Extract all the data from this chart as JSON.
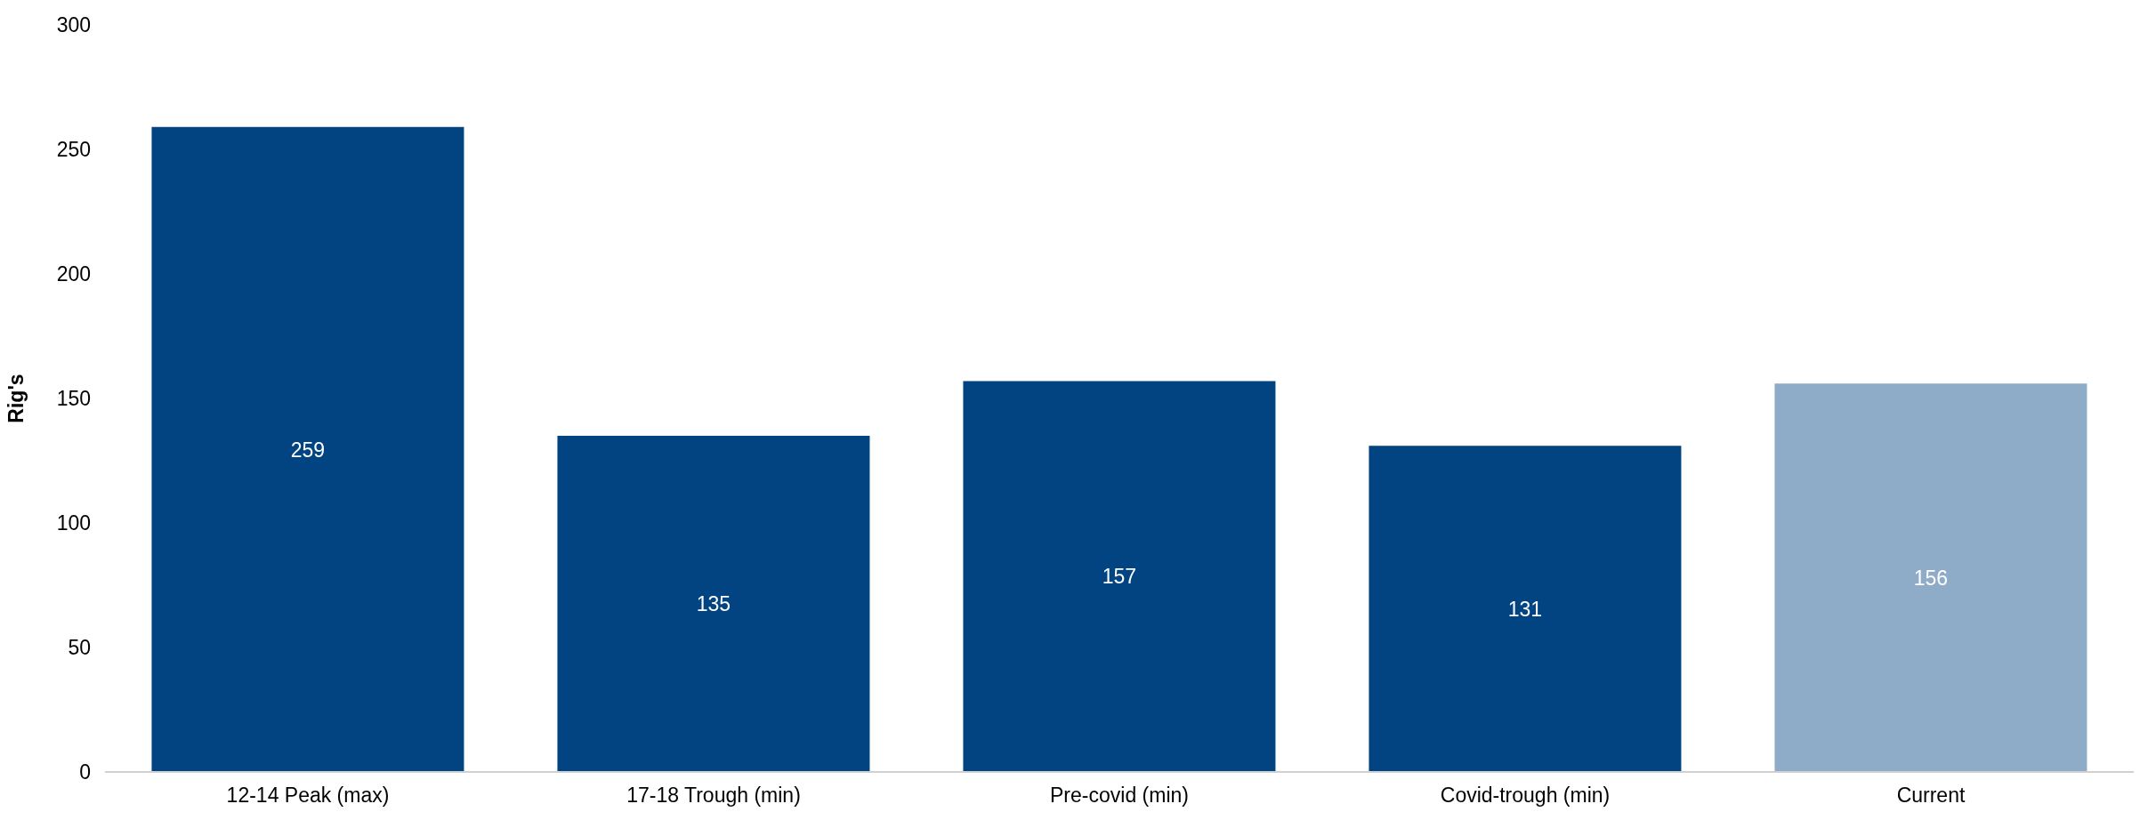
{
  "chart_data": {
    "type": "bar",
    "ylabel": "Rig's",
    "categories": [
      "12-14 Peak (max)",
      "17-18 Trough (min)",
      "Pre-covid (min)",
      "Covid-trough (min)",
      "Current"
    ],
    "values": [
      259,
      135,
      157,
      131,
      156
    ],
    "colors": [
      "#024381",
      "#024381",
      "#024381",
      "#024381",
      "#8eabc8"
    ],
    "ylim": [
      0,
      300
    ],
    "yticks": [
      0,
      50,
      100,
      150,
      200,
      250,
      300
    ],
    "grid": false,
    "legend": false,
    "data_labels": true
  }
}
